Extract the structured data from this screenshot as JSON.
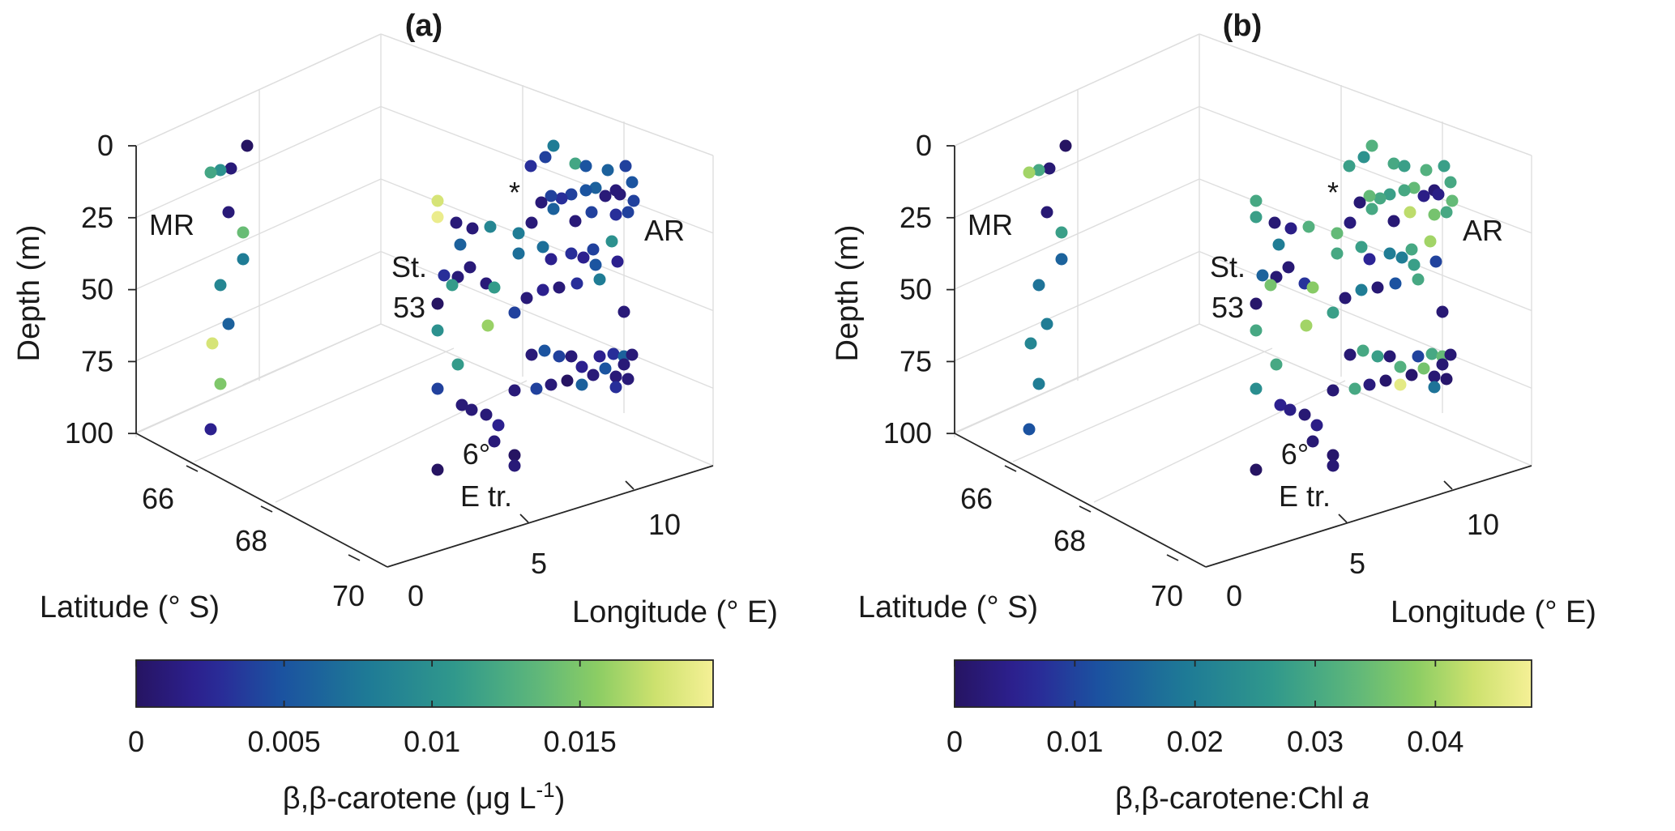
{
  "chart_data": [
    {
      "type": "scatter3d",
      "panel": "(a)",
      "zlabel": "Depth (m)",
      "xlabel": "Longitude (° E)",
      "ylabel": "Latitude (° S)",
      "xticks": [
        "0",
        "5",
        "10"
      ],
      "yticks": [
        "66",
        "68",
        "70"
      ],
      "zticks": [
        "0",
        "25",
        "50",
        "75",
        "100"
      ],
      "zlim": [
        0,
        100
      ],
      "grid": true,
      "annotations": [
        "MR",
        "AR",
        "St.",
        "53",
        "6°",
        "E tr.",
        "*"
      ],
      "colorbar": {
        "label_prefix": "β,β-carotene (μg L",
        "label_sup": "-1",
        "label_suffix": ")",
        "ticks": [
          "0",
          "0.005",
          "0.01",
          "0.015"
        ],
        "range": [
          0,
          0.0195
        ]
      },
      "points": [
        {
          "lon": 0.5,
          "lat": 65.2,
          "depth": 0,
          "value": 0.0
        },
        {
          "lon": 0.3,
          "lat": 65.3,
          "depth": 8,
          "value": 0.001
        },
        {
          "lon": 0.1,
          "lat": 65.4,
          "depth": 10,
          "value": 0.01
        },
        {
          "lon": 0.0,
          "lat": 65.6,
          "depth": 12,
          "value": 0.012
        },
        {
          "lon": 0.2,
          "lat": 65.5,
          "depth": 25,
          "value": 0.001
        },
        {
          "lon": 0.1,
          "lat": 65.5,
          "depth": 30,
          "value": 0.014
        },
        {
          "lon": 0.0,
          "lat": 65.6,
          "depth": 40,
          "value": 0.008
        },
        {
          "lon": -0.1,
          "lat": 65.9,
          "depth": 50,
          "value": 0.009
        },
        {
          "lon": 0.0,
          "lat": 65.8,
          "depth": 60,
          "value": 0.006
        },
        {
          "lon": -0.2,
          "lat": 66.0,
          "depth": 68,
          "value": 0.018
        },
        {
          "lon": -0.1,
          "lat": 65.9,
          "depth": 83,
          "value": 0.015
        },
        {
          "lon": -0.3,
          "lat": 66.2,
          "depth": 95,
          "value": 0.002
        }
      ],
      "value_counts": {
        "dark": 58,
        "teal": 14,
        "green": 6,
        "yellow": 2
      }
    },
    {
      "type": "scatter3d",
      "panel": "(b)",
      "zlabel": "Depth (m)",
      "xlabel": "Longitude (° E)",
      "ylabel": "Latitude (° S)",
      "xticks": [
        "0",
        "5",
        "10"
      ],
      "yticks": [
        "66",
        "68",
        "70"
      ],
      "zticks": [
        "0",
        "25",
        "50",
        "75",
        "100"
      ],
      "zlim": [
        0,
        100
      ],
      "grid": true,
      "annotations": [
        "MR",
        "AR",
        "St.",
        "53",
        "6°",
        "E tr.",
        "*"
      ],
      "colorbar": {
        "label_prefix": "β,β-carotene:Chl ",
        "label_italic": "a",
        "ticks": [
          "0",
          "0.01",
          "0.02",
          "0.03",
          "0.04"
        ],
        "range": [
          0,
          0.048
        ]
      },
      "points": [
        {
          "lon": 0.5,
          "lat": 65.2,
          "depth": 0,
          "value": 0.0
        },
        {
          "lon": 0.3,
          "lat": 65.3,
          "depth": 8,
          "value": 0.002
        },
        {
          "lon": 0.1,
          "lat": 65.4,
          "depth": 10,
          "value": 0.03
        },
        {
          "lon": 0.0,
          "lat": 65.6,
          "depth": 12,
          "value": 0.04
        },
        {
          "lon": 0.2,
          "lat": 65.5,
          "depth": 25,
          "value": 0.002
        },
        {
          "lon": 0.1,
          "lat": 65.5,
          "depth": 30,
          "value": 0.028
        },
        {
          "lon": 0.0,
          "lat": 65.6,
          "depth": 40,
          "value": 0.015
        },
        {
          "lon": -0.1,
          "lat": 65.9,
          "depth": 50,
          "value": 0.018
        },
        {
          "lon": 0.0,
          "lat": 65.8,
          "depth": 60,
          "value": 0.02
        },
        {
          "lon": -0.2,
          "lat": 66.0,
          "depth": 68,
          "value": 0.022
        },
        {
          "lon": -0.1,
          "lat": 65.9,
          "depth": 83,
          "value": 0.02
        },
        {
          "lon": -0.3,
          "lat": 66.2,
          "depth": 95,
          "value": 0.012
        }
      ]
    }
  ]
}
